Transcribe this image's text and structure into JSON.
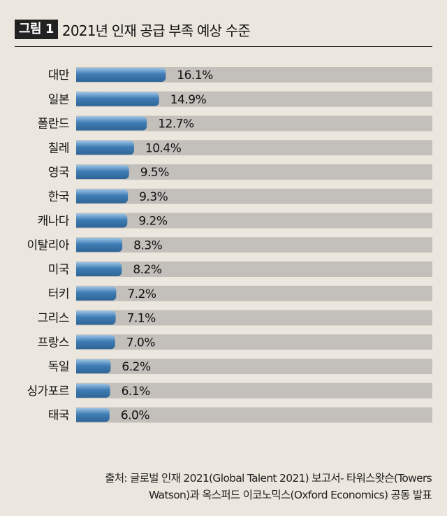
{
  "figure_label": "그림 1",
  "chart_data": {
    "type": "bar",
    "orientation": "horizontal",
    "title": "2021년 인재 공급 부족 예상 수준",
    "categories": [
      "대만",
      "일본",
      "폴란드",
      "칠레",
      "영국",
      "한국",
      "캐나다",
      "이탈리아",
      "미국",
      "터키",
      "그리스",
      "프랑스",
      "독일",
      "싱가포르",
      "태국"
    ],
    "values": [
      16.1,
      14.9,
      12.7,
      10.4,
      9.5,
      9.3,
      9.2,
      8.3,
      8.2,
      7.2,
      7.1,
      7.0,
      6.2,
      6.1,
      6.0
    ],
    "value_labels": [
      "16.1%",
      "14.9%",
      "12.7%",
      "10.4%",
      "9.5%",
      "9.3%",
      "9.2%",
      "8.3%",
      "8.2%",
      "7.2%",
      "7.1%",
      "7.0%",
      "6.2%",
      "6.1%",
      "6.0%"
    ],
    "xlim": [
      0,
      64
    ],
    "grid": false,
    "legend": "none",
    "colors": {
      "bar": "#3f7db5",
      "bar_highlight": "#9cc4e6",
      "track": "#c3c0bb",
      "background": "#ece7de"
    }
  },
  "source": {
    "line1": "출처: 글로벌 인재 2021(Global Talent 2021) 보고서- 타워스왓슨(Towers",
    "line2": "Watson)과 옥스퍼드 이코노믹스(Oxford Economics) 공동 발표"
  }
}
